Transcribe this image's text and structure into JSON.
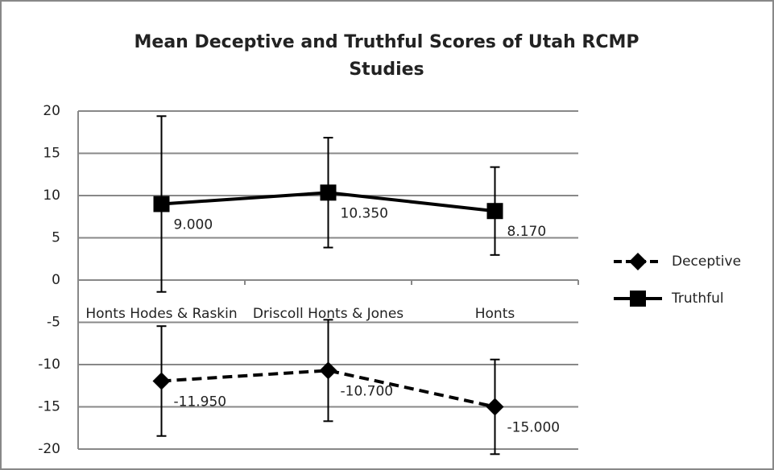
{
  "chart_data": {
    "type": "line",
    "title": "Mean Deceptive and Truthful Scores of Utah RCMP Studies",
    "categories": [
      "Honts Hodes & Raskin",
      "Driscoll Honts & Jones",
      "Honts"
    ],
    "series": [
      {
        "name": "Deceptive",
        "color": "#000000",
        "dash": true,
        "marker": "diamond",
        "values": [
          -11.95,
          -10.7,
          -15
        ],
        "value_labels": [
          "-11.950",
          "-10.700",
          "-15.000"
        ],
        "errors": [
          6.5,
          6,
          5.6
        ]
      },
      {
        "name": "Truthful",
        "color": "#000000",
        "dash": false,
        "marker": "square",
        "values": [
          9,
          10.35,
          8.17
        ],
        "value_labels": [
          "9.000",
          "10.350",
          "8.170"
        ],
        "errors": [
          10.4,
          6.5,
          5.2
        ]
      }
    ],
    "ylim": [
      -20,
      20
    ],
    "yticks": [
      -20,
      -15,
      -10,
      -5,
      0,
      5,
      10,
      15,
      20
    ],
    "grid": true,
    "legend": "right"
  }
}
